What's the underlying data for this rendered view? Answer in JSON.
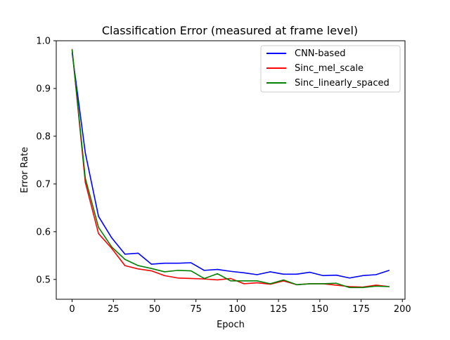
{
  "chart_data": {
    "type": "line",
    "title": "Classification Error (measured at frame level)",
    "xlabel": "Epoch",
    "ylabel": "Error Rate",
    "xlim": [
      -9.6,
      201.6
    ],
    "ylim": [
      0.4585,
      1.0
    ],
    "xticks": [
      0,
      25,
      50,
      75,
      100,
      125,
      150,
      175,
      200
    ],
    "yticks": [
      0.5,
      0.6,
      0.7,
      0.8,
      0.9,
      1.0
    ],
    "xtick_labels": [
      "0",
      "25",
      "50",
      "75",
      "100",
      "125",
      "150",
      "175",
      "200"
    ],
    "ytick_labels": [
      "0.5",
      "0.6",
      "0.7",
      "0.8",
      "0.9",
      "1.0"
    ],
    "grid": false,
    "legend_position": "top-right",
    "x": [
      0,
      8,
      16,
      24,
      32,
      40,
      48,
      56,
      64,
      72,
      80,
      88,
      96,
      104,
      112,
      120,
      128,
      136,
      144,
      152,
      160,
      168,
      176,
      184,
      192
    ],
    "series": [
      {
        "name": "CNN-based",
        "color": "#0000ff",
        "values": [
          0.975,
          0.765,
          0.632,
          0.587,
          0.553,
          0.555,
          0.532,
          0.534,
          0.534,
          0.535,
          0.519,
          0.521,
          0.517,
          0.514,
          0.51,
          0.516,
          0.511,
          0.511,
          0.515,
          0.508,
          0.509,
          0.503,
          0.508,
          0.51,
          0.519
        ]
      },
      {
        "name": "Sinc_mel_scale",
        "color": "#ff0000",
        "values": [
          0.982,
          0.703,
          0.596,
          0.565,
          0.529,
          0.522,
          0.518,
          0.508,
          0.503,
          0.502,
          0.501,
          0.499,
          0.502,
          0.491,
          0.493,
          0.49,
          0.497,
          0.489,
          0.491,
          0.491,
          0.488,
          0.485,
          0.484,
          0.488,
          0.485
        ]
      },
      {
        "name": "Sinc_linearly_spaced",
        "color": "#008000",
        "values": [
          0.981,
          0.712,
          0.609,
          0.568,
          0.542,
          0.529,
          0.523,
          0.516,
          0.519,
          0.518,
          0.502,
          0.512,
          0.497,
          0.497,
          0.497,
          0.491,
          0.499,
          0.489,
          0.491,
          0.491,
          0.492,
          0.483,
          0.483,
          0.486,
          0.485
        ]
      }
    ]
  }
}
